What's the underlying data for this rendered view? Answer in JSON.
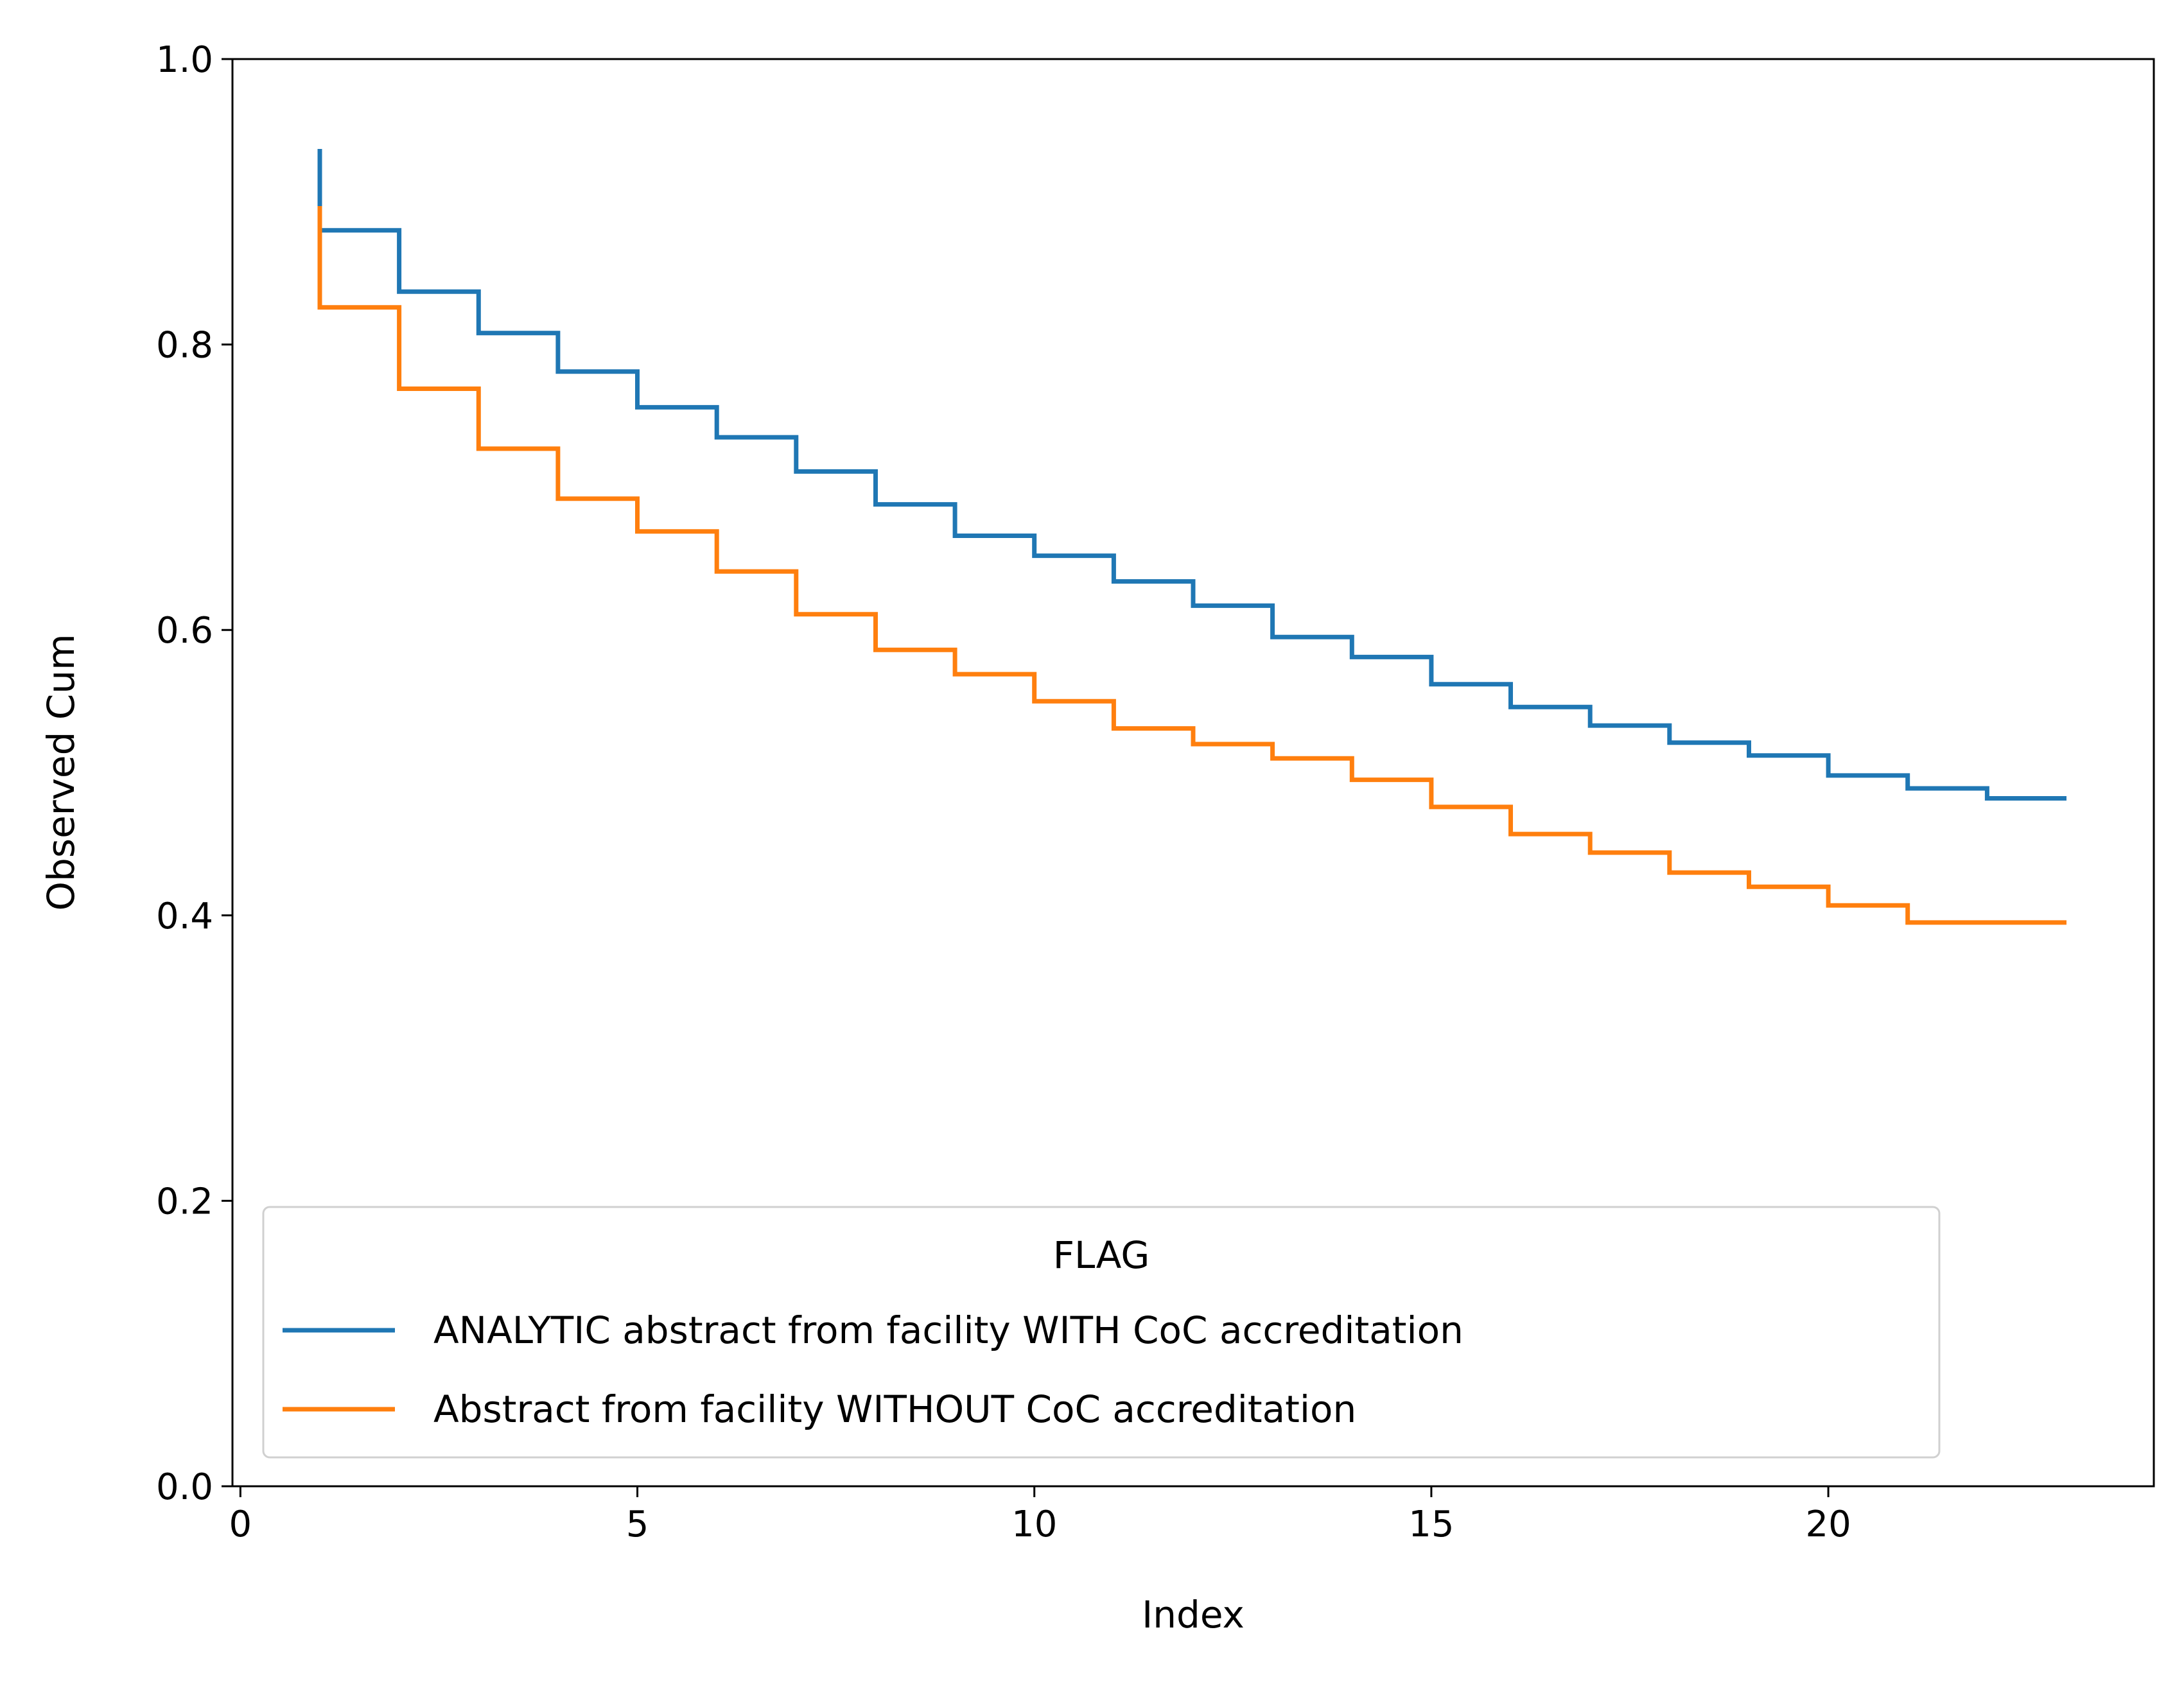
{
  "chart_data": {
    "type": "line",
    "step": "post",
    "title": "",
    "xlabel": "Index",
    "ylabel": "Observed Cum",
    "xlim": [
      -0.1,
      24.1
    ],
    "ylim": [
      0.0,
      1.0
    ],
    "xticks": [
      0,
      5,
      10,
      15,
      20
    ],
    "xtick_labels": [
      "0",
      "5",
      "10",
      "15",
      "20"
    ],
    "yticks": [
      0.0,
      0.2,
      0.4,
      0.6,
      0.8,
      1.0
    ],
    "ytick_labels": [
      "0.0",
      "0.2",
      "0.4",
      "0.6",
      "0.8",
      "1.0"
    ],
    "grid": false,
    "legend": {
      "title": "FLAG",
      "placement": "lower-left"
    },
    "x": [
      1,
      2,
      3,
      4,
      5,
      6,
      7,
      8,
      9,
      10,
      11,
      12,
      13,
      14,
      15,
      16,
      17,
      18,
      19,
      20,
      21,
      22,
      23
    ],
    "series": [
      {
        "name": "ANALYTIC abstract from facility WITH CoC accreditation",
        "color": "#1f77b4",
        "start": 0.937,
        "values": [
          0.88,
          0.837,
          0.808,
          0.781,
          0.756,
          0.735,
          0.711,
          0.688,
          0.666,
          0.652,
          0.634,
          0.617,
          0.595,
          0.581,
          0.562,
          0.546,
          0.533,
          0.521,
          0.512,
          0.498,
          0.489,
          0.482,
          0.482
        ]
      },
      {
        "name": "Abstract from facility WITHOUT CoC accreditation",
        "color": "#ff7f0e",
        "start": 0.897,
        "values": [
          0.826,
          0.769,
          0.727,
          0.692,
          0.669,
          0.641,
          0.611,
          0.586,
          0.569,
          0.55,
          0.531,
          0.52,
          0.51,
          0.495,
          0.476,
          0.457,
          0.444,
          0.43,
          0.42,
          0.407,
          0.395,
          0.395,
          0.395
        ]
      }
    ]
  }
}
